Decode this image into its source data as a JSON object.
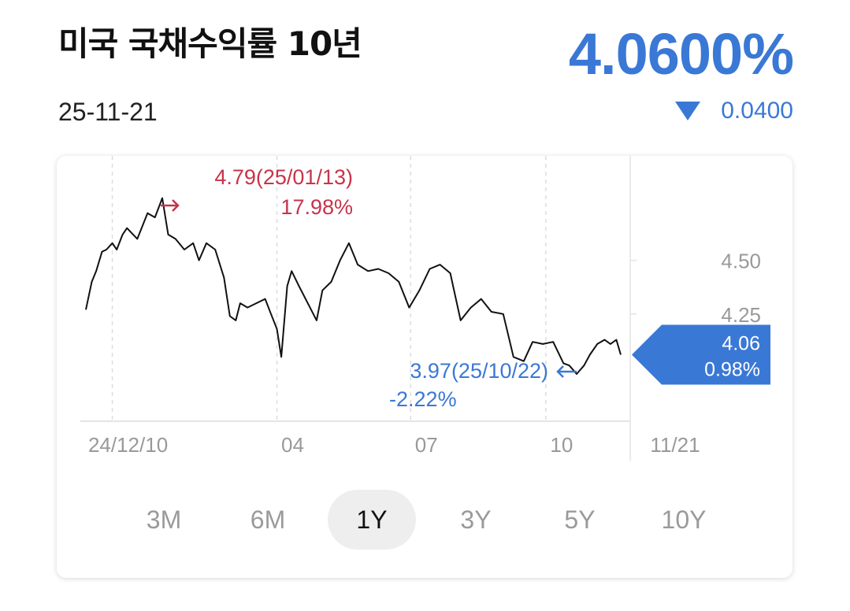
{
  "header": {
    "title": "미국 국채수익률 10년",
    "price": "4.0600%",
    "date": "25-11-21",
    "change": "0.0400",
    "change_direction_icon": "down-triangle-icon"
  },
  "colors": {
    "accent_blue": "#3a78d6",
    "high_red": "#c8334a",
    "line": "#111111",
    "tick_text": "#999999",
    "axis": "#e4e4e4"
  },
  "chart_data": {
    "type": "line",
    "y_ticks": [
      {
        "value": 4.5,
        "label": "4.50"
      },
      {
        "value": 4.25,
        "label": "4.25"
      }
    ],
    "ylim": [
      3.75,
      4.95
    ],
    "x_ticks": [
      {
        "date": "2024-12-10",
        "label": "24/12/10"
      },
      {
        "date": "2025-04-01",
        "label": "04"
      },
      {
        "date": "2025-07-01",
        "label": "07"
      },
      {
        "date": "2025-10-01",
        "label": "10"
      },
      {
        "date": "2025-11-21",
        "label": "11/21"
      }
    ],
    "x": [
      "2024-11-22",
      "2024-11-26",
      "2024-11-29",
      "2024-12-03",
      "2024-12-06",
      "2024-12-10",
      "2024-12-13",
      "2024-12-17",
      "2024-12-20",
      "2024-12-27",
      "2025-01-03",
      "2025-01-08",
      "2025-01-13",
      "2025-01-17",
      "2025-01-22",
      "2025-01-28",
      "2025-02-03",
      "2025-02-07",
      "2025-02-12",
      "2025-02-18",
      "2025-02-24",
      "2025-02-28",
      "2025-03-04",
      "2025-03-07",
      "2025-03-12",
      "2025-03-18",
      "2025-03-24",
      "2025-03-28",
      "2025-04-01",
      "2025-04-04",
      "2025-04-08",
      "2025-04-11",
      "2025-04-16",
      "2025-04-22",
      "2025-04-28",
      "2025-05-02",
      "2025-05-08",
      "2025-05-14",
      "2025-05-20",
      "2025-05-26",
      "2025-06-02",
      "2025-06-09",
      "2025-06-16",
      "2025-06-23",
      "2025-06-30",
      "2025-07-07",
      "2025-07-14",
      "2025-07-21",
      "2025-07-28",
      "2025-08-04",
      "2025-08-11",
      "2025-08-18",
      "2025-08-25",
      "2025-09-02",
      "2025-09-09",
      "2025-09-16",
      "2025-09-22",
      "2025-09-29",
      "2025-10-06",
      "2025-10-13",
      "2025-10-17",
      "2025-10-22",
      "2025-10-27",
      "2025-10-31",
      "2025-11-05",
      "2025-11-10",
      "2025-11-14",
      "2025-11-18",
      "2025-11-21"
    ],
    "values": [
      4.27,
      4.4,
      4.45,
      4.54,
      4.55,
      4.58,
      4.55,
      4.62,
      4.65,
      4.6,
      4.72,
      4.7,
      4.79,
      4.62,
      4.6,
      4.55,
      4.58,
      4.5,
      4.58,
      4.55,
      4.42,
      4.24,
      4.22,
      4.3,
      4.28,
      4.3,
      4.32,
      4.25,
      4.18,
      4.05,
      4.38,
      4.45,
      4.38,
      4.3,
      4.22,
      4.36,
      4.4,
      4.5,
      4.58,
      4.48,
      4.45,
      4.46,
      4.44,
      4.4,
      4.28,
      4.36,
      4.46,
      4.48,
      4.44,
      4.22,
      4.28,
      4.32,
      4.26,
      4.25,
      4.05,
      4.03,
      4.12,
      4.11,
      4.12,
      4.02,
      4.01,
      3.97,
      4.01,
      4.06,
      4.11,
      4.13,
      4.11,
      4.13,
      4.06
    ],
    "current": {
      "value_label": "4.06",
      "pct_label": "0.98%"
    },
    "high": {
      "label": "4.79(25/01/13)",
      "pct_label": "17.98%",
      "date": "2025-01-13",
      "value": 4.79
    },
    "low": {
      "label": "3.97(25/10/22)",
      "pct_label": "-2.22%",
      "date": "2025-10-22",
      "value": 3.97
    }
  },
  "ranges": [
    {
      "label": "3M",
      "active": false
    },
    {
      "label": "6M",
      "active": false
    },
    {
      "label": "1Y",
      "active": true
    },
    {
      "label": "3Y",
      "active": false
    },
    {
      "label": "5Y",
      "active": false
    },
    {
      "label": "10Y",
      "active": false
    }
  ]
}
